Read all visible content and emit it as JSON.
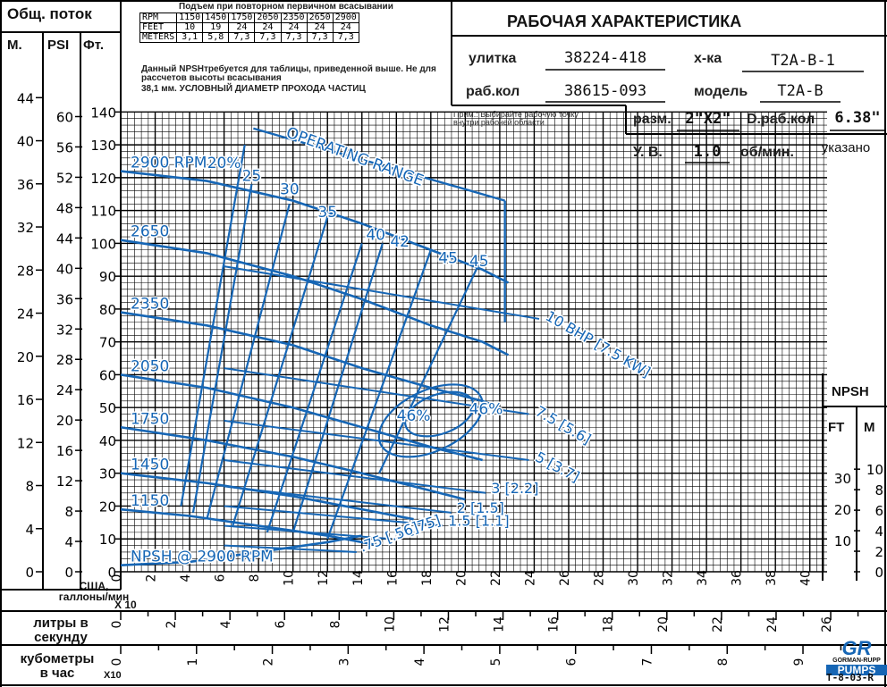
{
  "header": {
    "total_flow": "Общ. поток",
    "unit_m": "М.",
    "unit_psi": "PSI",
    "unit_ft": "Фт.",
    "title": "РАБОЧАЯ ХАРАКТЕРИСТИКА"
  },
  "lift_table": {
    "title": "Подъем при повторном первичном всасывании",
    "rows": [
      {
        "label": "RPM",
        "values": [
          "1150",
          "1450",
          "1750",
          "2050",
          "2350",
          "2650",
          "2900"
        ]
      },
      {
        "label": "FEET",
        "values": [
          "10",
          "19",
          "24",
          "24",
          "24",
          "24",
          "24"
        ]
      },
      {
        "label": "METERS",
        "values": [
          "3,1",
          "5,8",
          "7,3",
          "7,3",
          "7,3",
          "7,3",
          "7,3"
        ]
      }
    ],
    "note": "Данный NPSHтребуется для таблицы, приведенной выше. Не для рассчетов высоты всасывания",
    "solids": "38,1 мм. УСЛОВНЫЙ ДИАМЕТР ПРОХОДА ЧАСТИЦ"
  },
  "info": {
    "volute_label": "улитка",
    "volute_value": "38224-418",
    "curve_label": "х-ка",
    "curve_value": "T2A-B-1",
    "impeller_label": "раб.кол",
    "impeller_value": "38615-093",
    "model_label": "модель",
    "model_value": "T2A-B",
    "note": "Прим.: Выбирайте рабочую точку внутри рабочей области",
    "size_label": "разм.",
    "size_value": "2\"X2\"",
    "impeller_dia_label": "D.раб.кол",
    "impeller_dia_value": "6.38\"",
    "sg_label": "У. В.",
    "sg_value": "1.0",
    "rpm_label": "об/мин.",
    "rpm_value": "указано"
  },
  "bottom": {
    "usgpm_label": "США, галлоны/мин",
    "usgpm_mult": "X 10",
    "lps_label": "литры в секунду",
    "m3h_label": "кубометры в час",
    "m3h_mult": "X10",
    "npsh_title": "NPSH",
    "npsh_ft": "FT",
    "npsh_m": "M",
    "logo_top": "GR",
    "logo_mid": "GORMAN-RUPP",
    "logo_bottom": "PUMPS",
    "code": "T-8-03-R"
  },
  "chart_data": {
    "type": "line",
    "xlabel": "США, галлоны/мин X 10",
    "xlim": [
      0,
      41
    ],
    "ylim": [
      0,
      142
    ],
    "x_ticks": [
      "0",
      "2",
      "4",
      "6",
      "8",
      "10",
      "12",
      "14",
      "16",
      "18",
      "20",
      "22",
      "24",
      "26",
      "28",
      "30",
      "32",
      "34",
      "36",
      "38",
      "40"
    ],
    "y_ticks_ft": [
      "0",
      "10",
      "20",
      "30",
      "40",
      "50",
      "60",
      "70",
      "80",
      "90",
      "100",
      "110",
      "120",
      "130",
      "140"
    ],
    "y_ticks_psi": [
      "0",
      "4",
      "8",
      "12",
      "16",
      "20",
      "24",
      "28",
      "32",
      "36",
      "40",
      "44",
      "48",
      "52",
      "56",
      "60"
    ],
    "y_ticks_m": [
      "0",
      "4",
      "8",
      "12",
      "16",
      "20",
      "24",
      "28",
      "32",
      "36",
      "40",
      "44"
    ],
    "lps_ticks": [
      "0",
      "2",
      "4",
      "6",
      "8",
      "10",
      "12",
      "14",
      "16",
      "18",
      "20",
      "22",
      "24",
      "26"
    ],
    "m3h_ticks": [
      "0",
      "1",
      "2",
      "3",
      "4",
      "5",
      "6",
      "7",
      "8",
      "9"
    ],
    "npsh_ft_ticks": [
      "10",
      "20",
      "30"
    ],
    "npsh_m_ticks": [
      "0",
      "2",
      "4",
      "6",
      "8",
      "10"
    ],
    "speed_curves": [
      {
        "name": "2900 RPM",
        "x": [
          0,
          5,
          10,
          14,
          18,
          21,
          22.5
        ],
        "y": [
          122,
          119,
          113,
          106,
          98,
          92,
          88
        ]
      },
      {
        "name": "2650",
        "x": [
          0,
          5,
          10,
          14,
          18,
          21,
          22.5
        ],
        "y": [
          101,
          97,
          90,
          83,
          75,
          70,
          66
        ]
      },
      {
        "name": "2350",
        "x": [
          0,
          5,
          10,
          14,
          18,
          21,
          22
        ],
        "y": [
          79,
          75,
          69,
          62,
          56,
          52,
          50
        ]
      },
      {
        "name": "2050",
        "x": [
          0,
          5,
          10,
          14,
          18,
          21
        ],
        "y": [
          60,
          56,
          50,
          44,
          38,
          34
        ]
      },
      {
        "name": "1750",
        "x": [
          0,
          5,
          10,
          14,
          17,
          20
        ],
        "y": [
          44,
          40,
          35,
          30,
          26,
          22
        ]
      },
      {
        "name": "1450",
        "x": [
          0,
          5,
          10,
          14,
          17
        ],
        "y": [
          30,
          27,
          23,
          19,
          16
        ]
      },
      {
        "name": "1150",
        "x": [
          0,
          4,
          8,
          12,
          15
        ],
        "y": [
          19,
          17,
          14,
          11,
          8
        ]
      },
      {
        "name": "NPSH @ 2900 RPM",
        "x": [
          0,
          4,
          8,
          12,
          14
        ],
        "y": [
          2,
          3,
          6,
          9,
          11
        ]
      }
    ],
    "efficiency_labels": [
      "20%",
      "25",
      "30",
      "35",
      "40",
      "42",
      "45",
      "45",
      "46%",
      "46%"
    ],
    "power_labels": [
      "10 BHP [7.5 KW]",
      "7.5 [5.6]",
      "5 [3.7]",
      "3 [2.2]",
      "2 [1.5]",
      "1.5 [1.1]",
      "1 [.75]",
      ".75 [.56]"
    ],
    "operating_range": "OPERATING RANGE"
  }
}
